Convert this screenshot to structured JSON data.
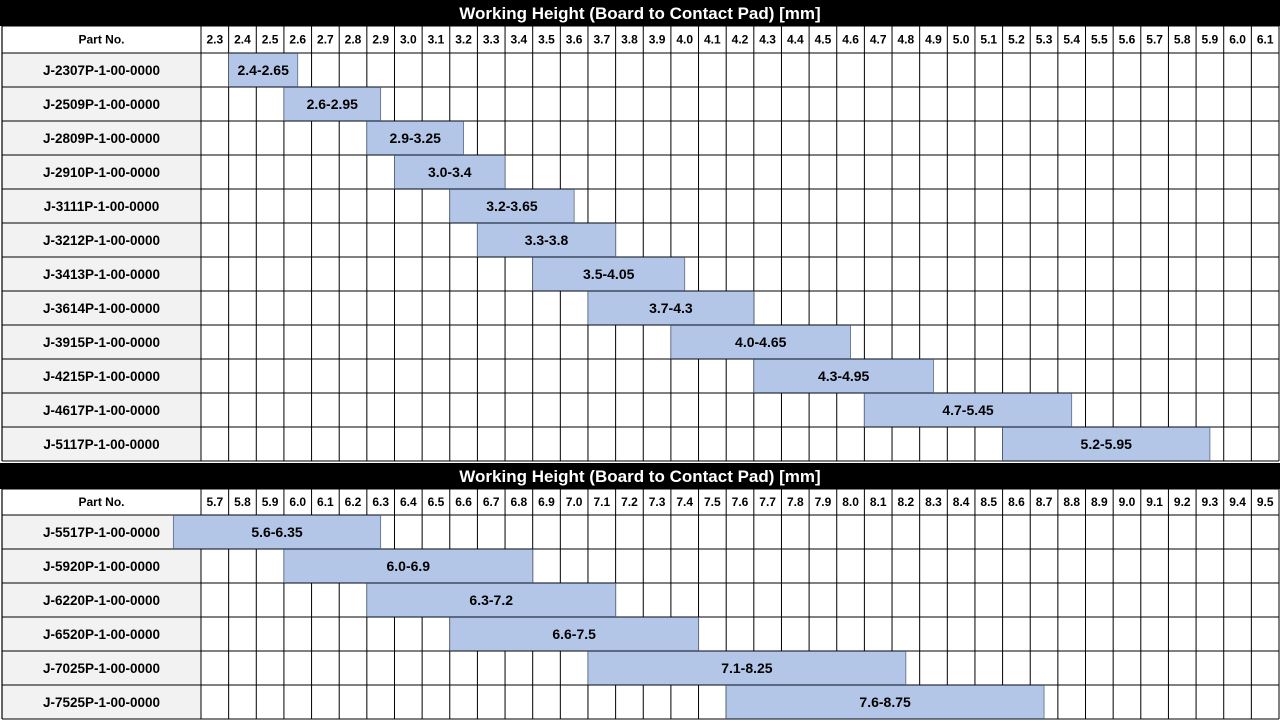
{
  "chart_data": [
    {
      "type": "bar",
      "title": "Working Height (Board to Contact Pad) [mm]",
      "row_header": "Part No.",
      "ticks": [
        "2.3",
        "2.4",
        "2.5",
        "2.6",
        "2.7",
        "2.8",
        "2.9",
        "3.0",
        "3.1",
        "3.2",
        "3.3",
        "3.4",
        "3.5",
        "3.6",
        "3.7",
        "3.8",
        "3.9",
        "4.0",
        "4.1",
        "4.2",
        "4.3",
        "4.4",
        "4.5",
        "4.6",
        "4.7",
        "4.8",
        "4.9",
        "5.0",
        "5.1",
        "5.2",
        "5.3",
        "5.4",
        "5.5",
        "5.6",
        "5.7",
        "5.8",
        "5.9",
        "6.0",
        "6.1"
      ],
      "rows": [
        {
          "part": "J-2307P-1-00-0000",
          "min": 2.4,
          "max": 2.65,
          "label": "2.4-2.65"
        },
        {
          "part": "J-2509P-1-00-0000",
          "min": 2.6,
          "max": 2.95,
          "label": "2.6-2.95"
        },
        {
          "part": "J-2809P-1-00-0000",
          "min": 2.9,
          "max": 3.25,
          "label": "2.9-3.25"
        },
        {
          "part": "J-2910P-1-00-0000",
          "min": 3.0,
          "max": 3.4,
          "label": "3.0-3.4"
        },
        {
          "part": "J-3111P-1-00-0000",
          "min": 3.2,
          "max": 3.65,
          "label": "3.2-3.65"
        },
        {
          "part": "J-3212P-1-00-0000",
          "min": 3.3,
          "max": 3.8,
          "label": "3.3-3.8"
        },
        {
          "part": "J-3413P-1-00-0000",
          "min": 3.5,
          "max": 4.05,
          "label": "3.5-4.05"
        },
        {
          "part": "J-3614P-1-00-0000",
          "min": 3.7,
          "max": 4.3,
          "label": "3.7-4.3"
        },
        {
          "part": "J-3915P-1-00-0000",
          "min": 4.0,
          "max": 4.65,
          "label": "4.0-4.65"
        },
        {
          "part": "J-4215P-1-00-0000",
          "min": 4.3,
          "max": 4.95,
          "label": "4.3-4.95"
        },
        {
          "part": "J-4617P-1-00-0000",
          "min": 4.7,
          "max": 5.45,
          "label": "4.7-5.45"
        },
        {
          "part": "J-5117P-1-00-0000",
          "min": 5.2,
          "max": 5.95,
          "label": "5.2-5.95"
        }
      ]
    },
    {
      "type": "bar",
      "title": "Working Height (Board to Contact Pad) [mm]",
      "row_header": "Part No.",
      "ticks": [
        "5.7",
        "5.8",
        "5.9",
        "6.0",
        "6.1",
        "6.2",
        "6.3",
        "6.4",
        "6.5",
        "6.6",
        "6.7",
        "6.8",
        "6.9",
        "7.0",
        "7.1",
        "7.2",
        "7.3",
        "7.4",
        "7.5",
        "7.6",
        "7.7",
        "7.8",
        "7.9",
        "8.0",
        "8.1",
        "8.2",
        "8.3",
        "8.4",
        "8.5",
        "8.6",
        "8.7",
        "8.8",
        "8.9",
        "9.0",
        "9.1",
        "9.2",
        "9.3",
        "9.4",
        "9.5"
      ],
      "rows": [
        {
          "part": "J-5517P-1-00-0000",
          "min": 5.6,
          "max": 6.35,
          "label": "5.6-6.35"
        },
        {
          "part": "J-5920P-1-00-0000",
          "min": 6.0,
          "max": 6.9,
          "label": "6.0-6.9"
        },
        {
          "part": "J-6220P-1-00-0000",
          "min": 6.3,
          "max": 7.2,
          "label": "6.3-7.2"
        },
        {
          "part": "J-6520P-1-00-0000",
          "min": 6.6,
          "max": 7.5,
          "label": "6.6-7.5"
        },
        {
          "part": "J-7025P-1-00-0000",
          "min": 7.1,
          "max": 8.25,
          "label": "7.1-8.25"
        },
        {
          "part": "J-7525P-1-00-0000",
          "min": 7.6,
          "max": 8.75,
          "label": "7.6-8.75"
        }
      ]
    }
  ],
  "colors": {
    "title_bg": "#000000",
    "title_text": "#ffffff",
    "part_cell_bg": "#f2f2f2",
    "bar_fill": "#b4c6e7",
    "grid_line": "#000000"
  }
}
